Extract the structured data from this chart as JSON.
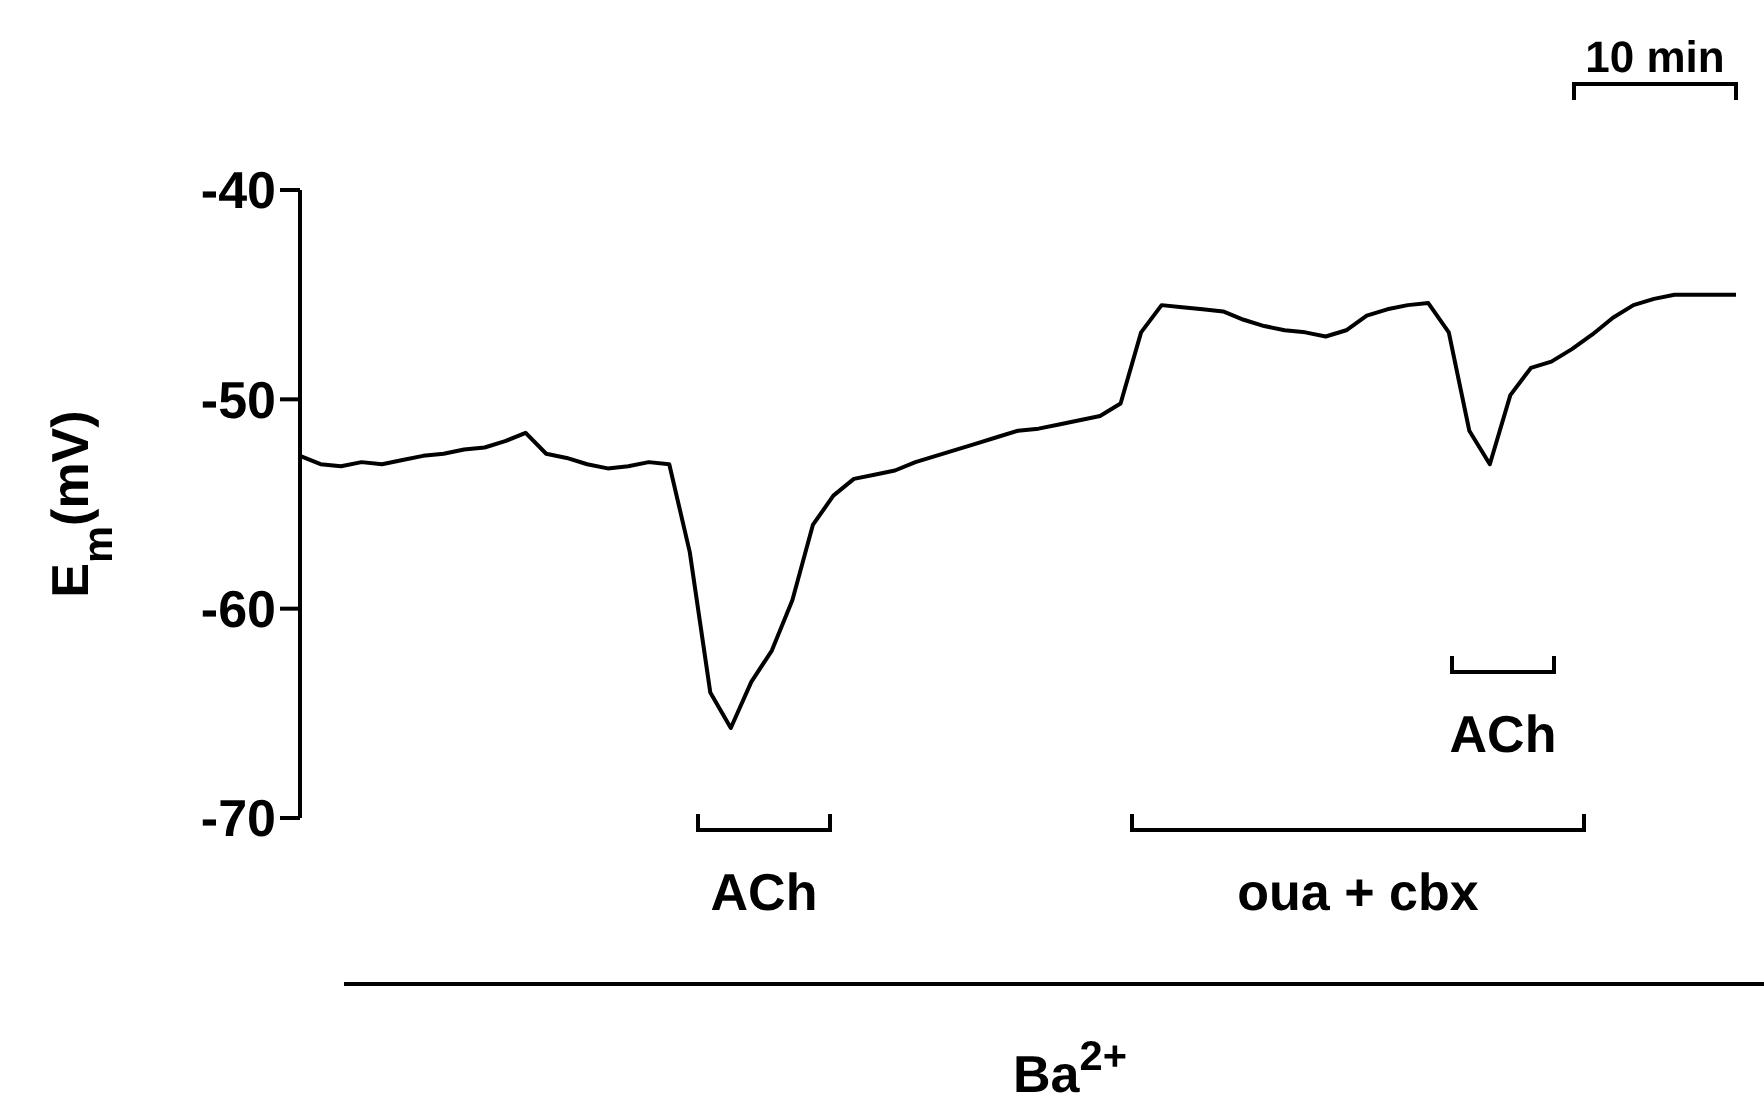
{
  "chart_data": {
    "type": "line",
    "ylabel": "E$_{m}$(mV)",
    "ylim": [
      -70,
      -40
    ],
    "yticks": [
      -70,
      -60,
      -50,
      -40
    ],
    "tick_labels": "y",
    "marker": "none",
    "line_style": "solid",
    "categories": [
      null,
      null,
      null,
      null,
      null,
      null,
      null,
      null,
      null,
      null,
      null,
      null,
      null,
      null,
      null,
      null,
      null,
      null,
      null,
      null,
      null,
      null,
      null,
      null,
      null,
      null,
      null,
      null,
      null,
      null,
      null,
      null,
      null,
      null,
      null,
      null,
      null,
      null,
      null,
      null,
      null,
      null,
      null,
      null,
      null,
      null,
      null,
      null,
      null,
      null,
      null,
      null,
      null,
      null,
      null,
      null,
      null,
      null,
      null,
      null,
      null,
      null,
      null,
      null,
      null,
      null,
      null,
      null,
      null,
      null,
      null
    ],
    "series": [
      {
        "color": "#000000",
        "values": [
          -52.7,
          -53.1,
          -53.2,
          -53.0,
          -53.1,
          -52.9,
          -52.7,
          -52.6,
          -52.4,
          -52.3,
          -52.0,
          -51.6,
          -52.6,
          -52.8,
          -53.1,
          -53.3,
          -53.2,
          -53.0,
          -53.1,
          -57.3,
          -64.0,
          -65.7,
          -63.5,
          -62.0,
          -59.6,
          -56.0,
          -54.6,
          -53.8,
          -53.6,
          -53.4,
          -53.0,
          -52.7,
          -52.4,
          -52.1,
          -51.8,
          -51.5,
          -51.4,
          -51.2,
          -51.0,
          -50.8,
          -50.2,
          -46.8,
          -45.5,
          -45.6,
          -45.7,
          -45.8,
          -46.2,
          -46.5,
          -46.7,
          -46.8,
          -47.0,
          -46.7,
          -46.0,
          -45.7,
          -45.5,
          -45.4,
          -46.8,
          -51.5,
          -53.1,
          -49.8,
          -48.5,
          -48.2,
          -47.6,
          -46.9,
          -46.1,
          -45.5,
          -45.2,
          -45.0,
          -45.0,
          -45.0,
          -45.0
        ]
      }
    ],
    "annotations": [
      "ACh",
      "oua + cbx",
      "ACh",
      "Ba$^{2+}$",
      "10 min"
    ]
  }
}
